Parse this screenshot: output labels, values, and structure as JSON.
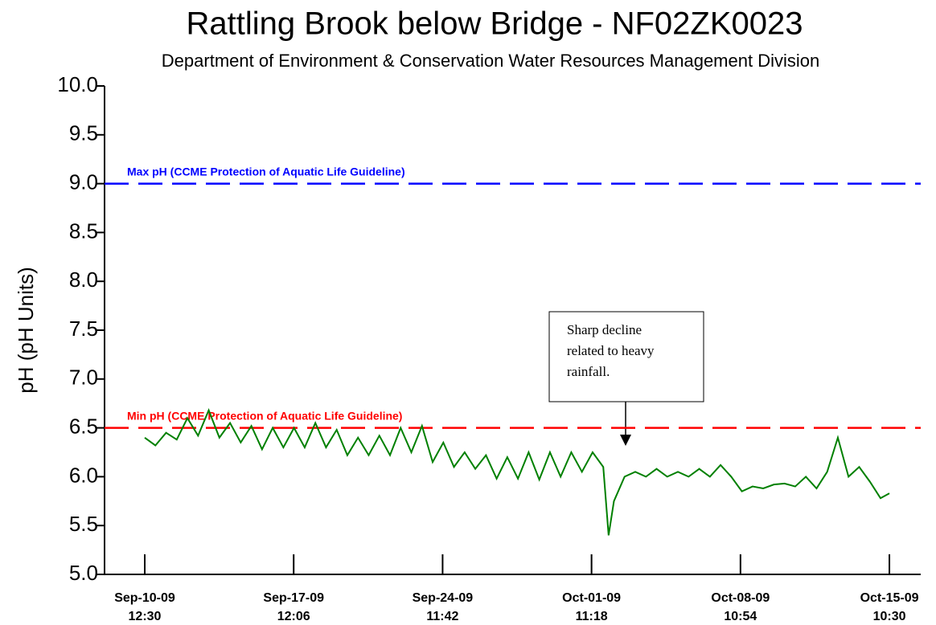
{
  "chart_data": {
    "type": "line",
    "title": "Rattling Brook below Bridge - NF02ZK0023",
    "subtitle": "Department of Environment & Conservation Water Resources Management Division",
    "y_label": "pH (pH Units)",
    "x": [
      "2009-09-10T12:30",
      "2009-09-11T00:30",
      "2009-09-11T12:30",
      "2009-09-12T00:30",
      "2009-09-12T12:30",
      "2009-09-13T00:30",
      "2009-09-13T12:30",
      "2009-09-14T00:30",
      "2009-09-14T12:30",
      "2009-09-15T00:30",
      "2009-09-15T12:30",
      "2009-09-16T00:30",
      "2009-09-16T12:30",
      "2009-09-17T00:30",
      "2009-09-17T12:30",
      "2009-09-18T00:30",
      "2009-09-18T12:30",
      "2009-09-19T00:30",
      "2009-09-19T12:30",
      "2009-09-20T00:30",
      "2009-09-20T12:30",
      "2009-09-21T00:30",
      "2009-09-21T12:30",
      "2009-09-22T00:30",
      "2009-09-22T12:30",
      "2009-09-23T00:30",
      "2009-09-23T12:30",
      "2009-09-24T00:30",
      "2009-09-24T12:30",
      "2009-09-25T00:30",
      "2009-09-25T12:30",
      "2009-09-26T00:30",
      "2009-09-26T12:30",
      "2009-09-27T00:30",
      "2009-09-27T12:30",
      "2009-09-28T00:30",
      "2009-09-28T12:30",
      "2009-09-29T00:30",
      "2009-09-29T12:30",
      "2009-09-30T00:30",
      "2009-09-30T12:30",
      "2009-10-01T00:30",
      "2009-10-01T12:30",
      "2009-10-02T00:30",
      "2009-10-02T06:30",
      "2009-10-02T12:30",
      "2009-10-03T00:30",
      "2009-10-03T12:30",
      "2009-10-04T00:30",
      "2009-10-04T12:30",
      "2009-10-05T00:30",
      "2009-10-05T12:30",
      "2009-10-06T00:30",
      "2009-10-06T12:30",
      "2009-10-07T00:30",
      "2009-10-07T12:30",
      "2009-10-08T00:30",
      "2009-10-08T12:30",
      "2009-10-09T00:30",
      "2009-10-09T12:30",
      "2009-10-10T00:30",
      "2009-10-10T12:30",
      "2009-10-11T00:30",
      "2009-10-11T12:30",
      "2009-10-12T00:30",
      "2009-10-12T12:30",
      "2009-10-13T00:30",
      "2009-10-13T12:30",
      "2009-10-14T00:30",
      "2009-10-14T12:30",
      "2009-10-15T00:30",
      "2009-10-15T10:30"
    ],
    "series": [
      {
        "color": "#008000",
        "values": [
          6.4,
          6.32,
          6.45,
          6.38,
          6.6,
          6.42,
          6.68,
          6.4,
          6.55,
          6.35,
          6.52,
          6.28,
          6.5,
          6.3,
          6.5,
          6.3,
          6.55,
          6.3,
          6.48,
          6.22,
          6.4,
          6.22,
          6.42,
          6.22,
          6.5,
          6.25,
          6.52,
          6.15,
          6.35,
          6.1,
          6.25,
          6.08,
          6.22,
          5.98,
          6.2,
          5.98,
          6.25,
          5.97,
          6.25,
          6.0,
          6.25,
          6.05,
          6.25,
          6.1,
          5.4,
          5.75,
          6.0,
          6.05,
          6.0,
          6.08,
          6.0,
          6.05,
          6.0,
          6.08,
          6.0,
          6.12,
          6.0,
          5.85,
          5.9,
          5.88,
          5.92,
          5.93,
          5.9,
          6.0,
          5.88,
          6.05,
          6.4,
          6.0,
          6.1,
          5.95,
          5.78,
          5.83
        ]
      }
    ],
    "xlim": [
      "2009-09-08T15:15",
      "2009-10-16T21:45"
    ],
    "xticks": [
      {
        "value": "2009-09-10T12:30",
        "label": [
          "Sep-10-09",
          "12:30"
        ]
      },
      {
        "value": "2009-09-17T12:06",
        "label": [
          "Sep-17-09",
          "12:06"
        ]
      },
      {
        "value": "2009-09-24T11:42",
        "label": [
          "Sep-24-09",
          "11:42"
        ]
      },
      {
        "value": "2009-10-01T11:18",
        "label": [
          "Oct-01-09",
          "11:18"
        ]
      },
      {
        "value": "2009-10-08T10:54",
        "label": [
          "Oct-08-09",
          "10:54"
        ]
      },
      {
        "value": "2009-10-15T10:30",
        "label": [
          "Oct-15-09",
          "10:30"
        ]
      }
    ],
    "ylim": [
      5,
      10
    ],
    "yticks": [
      {
        "value": 5,
        "label": "5.0"
      },
      {
        "value": 5.5,
        "label": "5.5"
      },
      {
        "value": 6,
        "label": "6.0"
      },
      {
        "value": 6.5,
        "label": "6.5"
      },
      {
        "value": 7,
        "label": "7.0"
      },
      {
        "value": 7.5,
        "label": "7.5"
      },
      {
        "value": 8,
        "label": "8.0"
      },
      {
        "value": 8.5,
        "label": "8.5"
      },
      {
        "value": 9,
        "label": "9.0"
      },
      {
        "value": 9.5,
        "label": "9.5"
      },
      {
        "value": 10,
        "label": "10.0"
      }
    ],
    "reference_lines": [
      {
        "value": 9,
        "label": "Max pH (CCME Protection of Aquatic Life Guideline)",
        "color": "#0000ff"
      },
      {
        "value": 6.5,
        "label": "Min pH (CCME Protection of Aquatic Life Guideline)",
        "color": "#ff0000"
      }
    ],
    "annotation": [
      "Sharp decline",
      "related to heavy",
      "rainfall."
    ]
  }
}
